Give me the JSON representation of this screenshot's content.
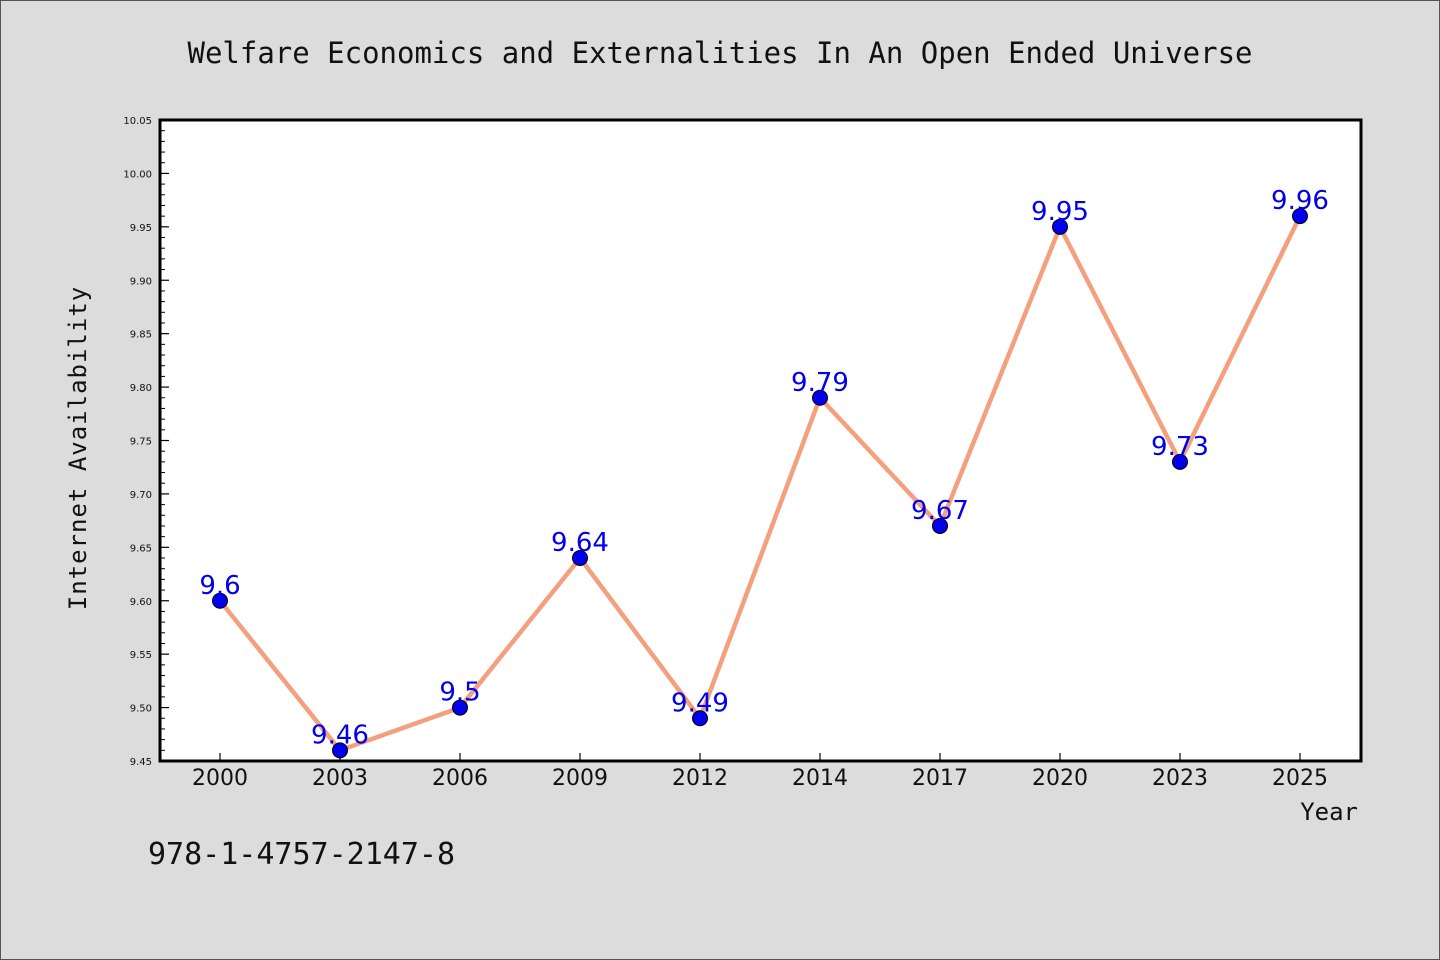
{
  "chart_data": {
    "type": "line",
    "title": "Welfare Economics and Externalities In An Open Ended Universe",
    "xlabel": "Year",
    "ylabel": "Internet Availability",
    "categories": [
      "2000",
      "2003",
      "2006",
      "2009",
      "2012",
      "2014",
      "2017",
      "2020",
      "2023",
      "2025"
    ],
    "series": [
      {
        "values": [
          9.6,
          9.46,
          9.5,
          9.64,
          9.49,
          9.79,
          9.67,
          9.95,
          9.73,
          9.96
        ],
        "labels": [
          "9.6",
          "9.46",
          "9.5",
          "9.64",
          "9.49",
          "9.79",
          "9.67",
          "9.95",
          "9.73",
          "9.96"
        ]
      }
    ],
    "ylim": [
      9.45,
      10.05
    ],
    "yticks": [
      "9.45",
      "9.50",
      "9.55",
      "9.60",
      "9.65",
      "9.70",
      "9.75",
      "9.80",
      "9.85",
      "9.90",
      "9.95",
      "10.00",
      "10.05"
    ],
    "grid": false,
    "legend": "none",
    "colors": {
      "line": "#f4a07e",
      "marker": "#0000ee",
      "marker_edge": "#000000",
      "data_label": "#0000ee",
      "plot_background": "#ffffff",
      "figure_background": "#dcdcdc"
    }
  },
  "footer": {
    "isbn": "978-1-4757-2147-8"
  }
}
